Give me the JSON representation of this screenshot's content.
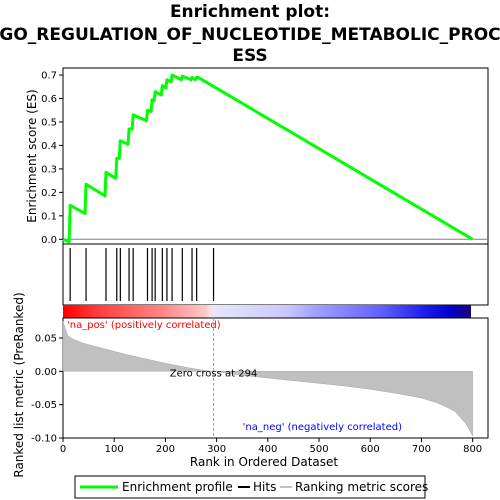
{
  "chart_data": {
    "type": "line",
    "title_lines": [
      "Enrichment plot:",
      "GO_REGULATION_OF_NUCLEOTIDE_METABOLIC_PROC",
      "ESS"
    ],
    "es_panel": {
      "ylabel": "Enrichment score (ES)",
      "ylim": [
        -0.02,
        0.73
      ],
      "yticks": [
        "0.0",
        "0.1",
        "0.2",
        "0.3",
        "0.4",
        "0.5",
        "0.6",
        "0.7"
      ],
      "series": [
        {
          "name": "Enrichment profile",
          "color": "#00ff00",
          "x": [
            0,
            12,
            14,
            43,
            45,
            82,
            84,
            103,
            105,
            110,
            112,
            127,
            129,
            135,
            137,
            163,
            165,
            172,
            174,
            178,
            180,
            192,
            194,
            201,
            203,
            211,
            213,
            231,
            233,
            250,
            252,
            258,
            261,
            264,
            800
          ],
          "y": [
            0.0,
            -0.01,
            0.145,
            0.11,
            0.235,
            0.185,
            0.285,
            0.26,
            0.345,
            0.345,
            0.42,
            0.405,
            0.47,
            0.47,
            0.53,
            0.505,
            0.55,
            0.545,
            0.595,
            0.59,
            0.63,
            0.615,
            0.655,
            0.645,
            0.68,
            0.67,
            0.7,
            0.68,
            0.695,
            0.68,
            0.69,
            0.68,
            0.69,
            0.69,
            0.0
          ]
        }
      ]
    },
    "hits": [
      14,
      45,
      84,
      105,
      112,
      129,
      137,
      165,
      174,
      180,
      194,
      203,
      213,
      233,
      252,
      261,
      294
    ],
    "rank_panel": {
      "ylabel": "Ranked list metric (PreRanked)",
      "ylim": [
        -0.1,
        0.08
      ],
      "yticks": [
        "0.05",
        "0.00",
        "-0.05",
        "-0.10"
      ],
      "curve": {
        "name": "Ranking metric scores",
        "x": [
          0,
          5,
          10,
          20,
          40,
          80,
          120,
          160,
          200,
          240,
          270,
          294,
          350,
          400,
          450,
          500,
          550,
          600,
          650,
          700,
          730,
          750,
          765,
          775,
          785,
          792,
          800
        ],
        "y": [
          0.075,
          0.062,
          0.053,
          0.048,
          0.042,
          0.034,
          0.026,
          0.019,
          0.012,
          0.006,
          0.002,
          0.0,
          -0.006,
          -0.01,
          -0.014,
          -0.018,
          -0.022,
          -0.027,
          -0.033,
          -0.04,
          -0.047,
          -0.054,
          -0.06,
          -0.068,
          -0.077,
          -0.085,
          -0.097
        ]
      },
      "zero_cross_label": "Zero cross at 294",
      "zero_cross_x": 294,
      "pos_label": "'na_pos' (positively correlated)",
      "neg_label": "'na_neg' (negatively correlated)"
    },
    "xlabel": "Rank in Ordered Dataset",
    "xlim": [
      0,
      830
    ],
    "xticks": [
      0,
      100,
      200,
      300,
      400,
      500,
      600,
      700,
      800
    ],
    "legend": {
      "placement": "bottom",
      "items": [
        {
          "label": "Enrichment profile",
          "color": "#00ff00"
        },
        {
          "label": "Hits",
          "color": "#000000"
        },
        {
          "label": "Ranking metric scores",
          "color": "#c0c0c0"
        }
      ]
    },
    "colors": {
      "es_line": "#00ff00",
      "zero_line": "#808080",
      "hit_line": "#000000",
      "metric_fill": "#c0c0c0",
      "pos_text": "#ff0000",
      "neg_text": "#0000ff",
      "zero_cross_line": "#a0a0a0"
    }
  }
}
